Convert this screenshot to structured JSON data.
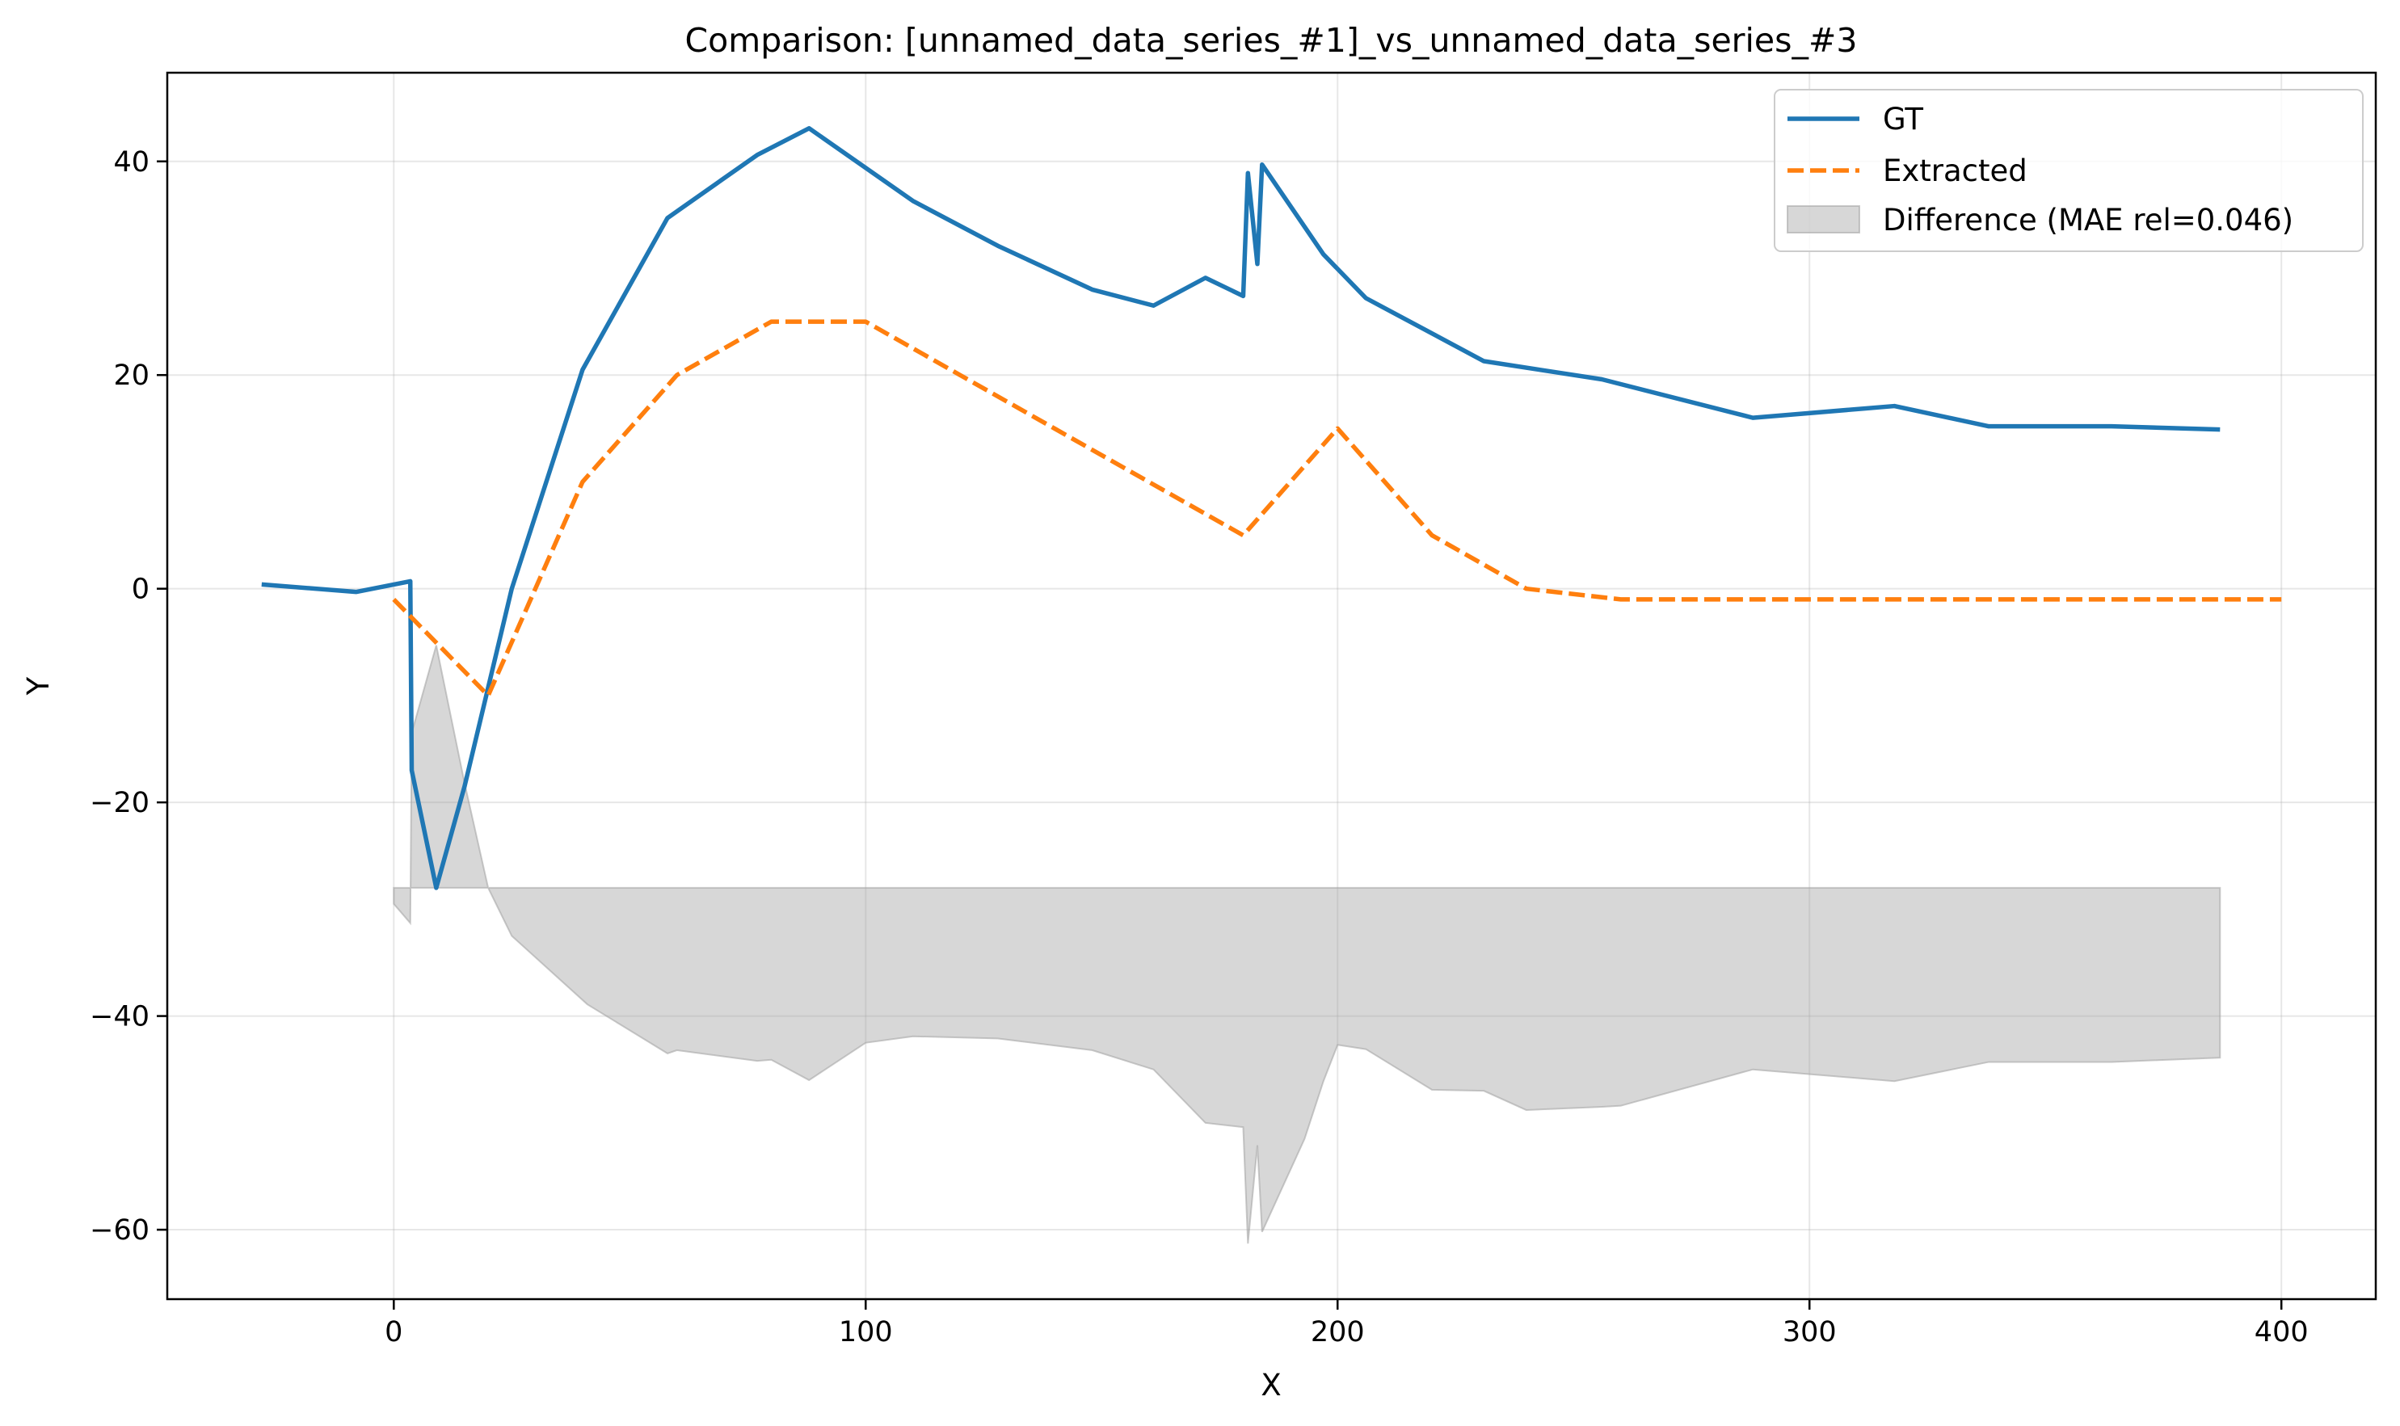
{
  "chart_data": {
    "type": "line",
    "title": "Comparison: [unnamed_data_series_#1]_vs_unnamed_data_series_#3",
    "xlabel": "X",
    "ylabel": "Y",
    "xlim": [
      -48,
      420
    ],
    "ylim": [
      -66.5,
      48.3
    ],
    "xticks": [
      0,
      100,
      200,
      300,
      400
    ],
    "yticks": [
      -60,
      -40,
      -20,
      0,
      20,
      40
    ],
    "grid": true,
    "legend_position": "upper right",
    "series": [
      {
        "name": "GT",
        "style": "solid",
        "color": "#1f77b4",
        "x": [
          -28,
          -8,
          3.5,
          3.8,
          9,
          15,
          25,
          40,
          58,
          77,
          88,
          110,
          128,
          148,
          161,
          172,
          180,
          181,
          183,
          184,
          197,
          206,
          231,
          256,
          288,
          318,
          338,
          364,
          387
        ],
        "y": [
          0.4,
          -0.3,
          0.7,
          -17,
          -28,
          -18.5,
          0,
          20.5,
          34.7,
          40.6,
          43.1,
          36.3,
          32.1,
          28.0,
          26.5,
          29.1,
          27.4,
          38.9,
          30.4,
          39.7,
          31.3,
          27.2,
          21.3,
          19.6,
          16.0,
          17.1,
          15.2,
          15.2,
          14.9
        ]
      },
      {
        "name": "Extracted",
        "style": "dashed",
        "color": "#ff7f0e",
        "x": [
          0,
          20,
          40,
          60,
          80,
          100,
          120,
          140,
          160,
          180,
          200,
          220,
          240,
          260,
          280,
          300,
          320,
          340,
          360,
          380,
          400
        ],
        "y": [
          -1,
          -10,
          10,
          20,
          25,
          25,
          20,
          15,
          10,
          5,
          15,
          5,
          0,
          -1,
          -1,
          -1,
          -1,
          -1,
          -1,
          -1,
          -1
        ]
      }
    ],
    "difference_area": {
      "name": "Difference (MAE rel=0.046)",
      "color": "#a0a0a0",
      "baseline": -28,
      "x": [
        0,
        3.5,
        3.8,
        9,
        15,
        20,
        25,
        40,
        41,
        58,
        60,
        77,
        80,
        88,
        100,
        110,
        128,
        148,
        161,
        172,
        180,
        181,
        183,
        184,
        193,
        197,
        200,
        206,
        220,
        231,
        240,
        256,
        260,
        288,
        318,
        338,
        364,
        387
      ],
      "y": [
        -29.5,
        -31.3,
        -13.5,
        -5.3,
        -18.2,
        -28,
        -32.5,
        -38.5,
        -38.9,
        -43.5,
        -43.2,
        -44.2,
        -44.1,
        -46.0,
        -42.5,
        -41.9,
        -42.1,
        -43.2,
        -45.0,
        -50.0,
        -50.4,
        -61.3,
        -52.1,
        -60.2,
        -51.5,
        -46.1,
        -42.7,
        -43.1,
        -46.9,
        -47.0,
        -48.8,
        -48.5,
        -48.4,
        -45.0,
        -46.1,
        -44.3,
        -44.3,
        -43.9
      ]
    }
  }
}
